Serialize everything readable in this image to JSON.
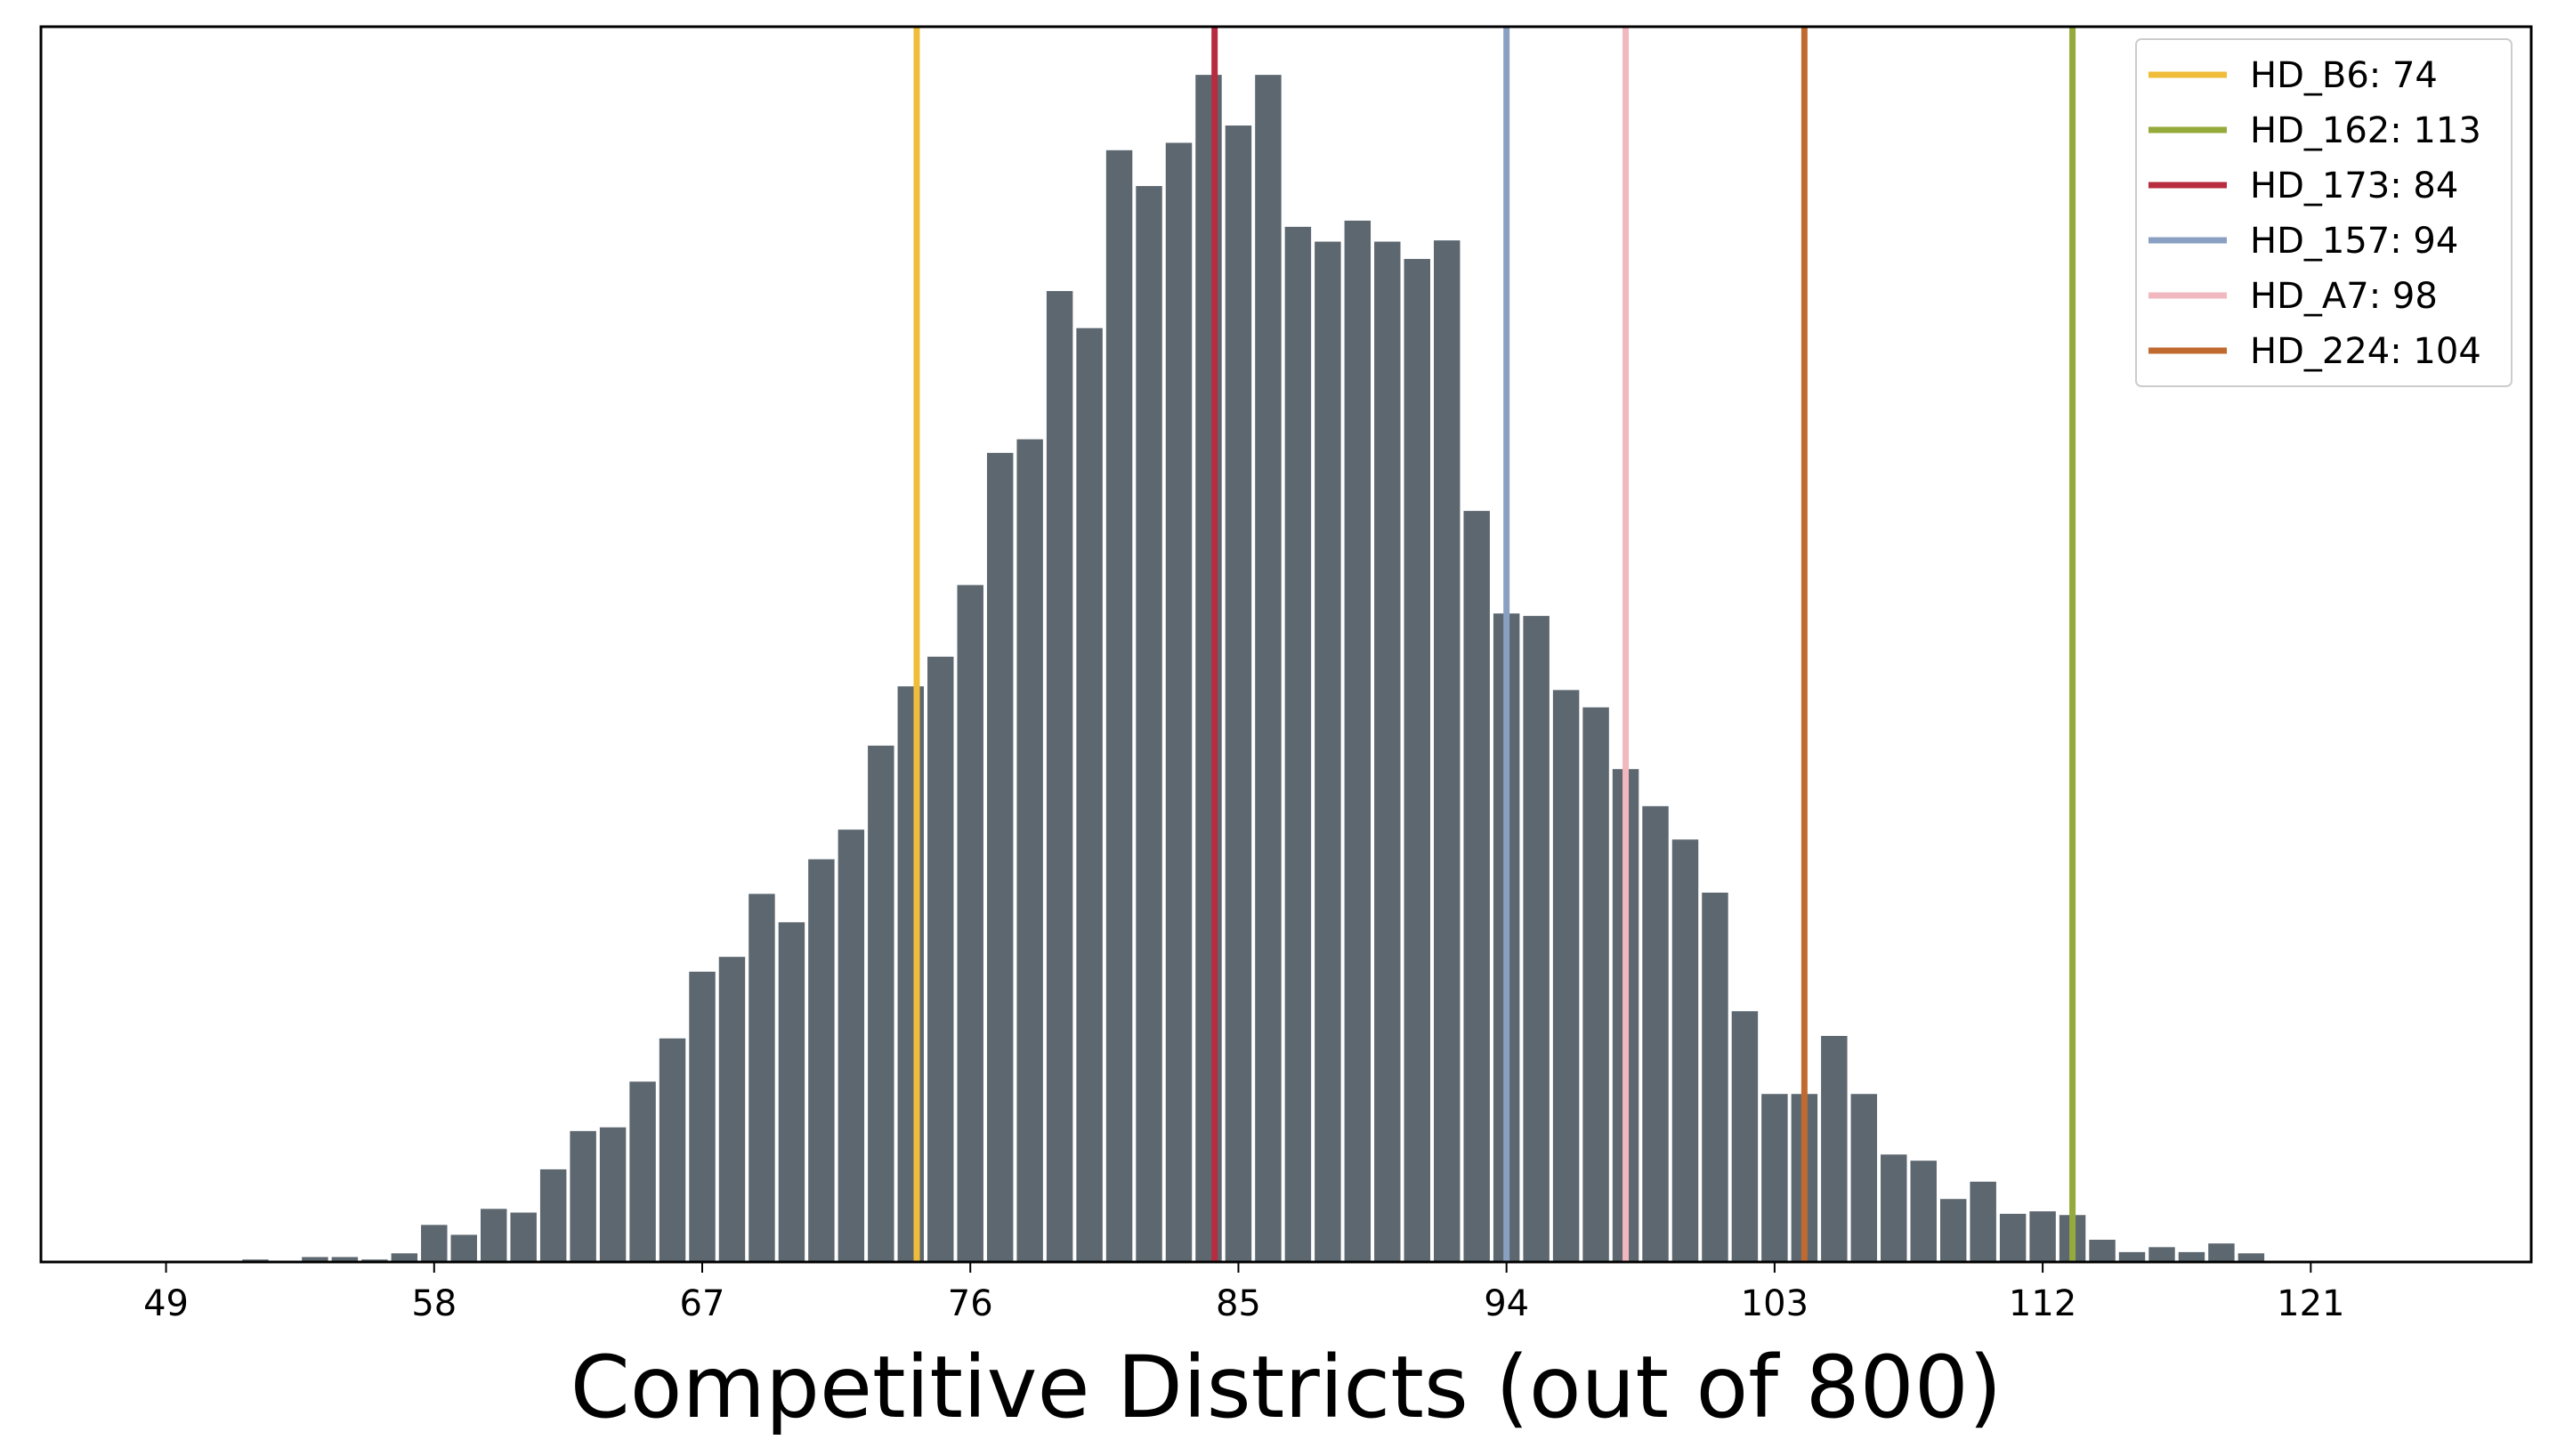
{
  "chart_data": {
    "type": "bar",
    "xlabel": "Competitive Districts (out of 800)",
    "ylabel": "",
    "title": "",
    "x_ticks": [
      49,
      58,
      67,
      76,
      85,
      94,
      103,
      112,
      121
    ],
    "xlim": [
      44.8,
      128.4
    ],
    "ylim": [
      0,
      1
    ],
    "grid": false,
    "legend_position": "top-right",
    "bar_color": "#5d6770",
    "histogram": {
      "x": [
        52,
        53,
        54,
        55,
        56,
        57,
        58,
        59,
        60,
        61,
        62,
        63,
        64,
        65,
        66,
        67,
        68,
        69,
        70,
        71,
        72,
        73,
        74,
        75,
        76,
        77,
        78,
        79,
        80,
        81,
        82,
        83,
        84,
        85,
        86,
        87,
        88,
        89,
        90,
        91,
        92,
        93,
        94,
        95,
        96,
        97,
        98,
        99,
        100,
        101,
        102,
        103,
        104,
        105,
        106,
        107,
        108,
        109,
        110,
        111,
        112,
        113,
        114,
        115,
        116,
        117,
        118,
        119
      ],
      "values": [
        0.002,
        0.0,
        0.004,
        0.004,
        0.002,
        0.007,
        0.03,
        0.022,
        0.043,
        0.04,
        0.075,
        0.106,
        0.109,
        0.146,
        0.181,
        0.235,
        0.247,
        0.298,
        0.275,
        0.326,
        0.35,
        0.418,
        0.466,
        0.49,
        0.548,
        0.655,
        0.666,
        0.786,
        0.756,
        0.9,
        0.871,
        0.906,
        0.961,
        0.92,
        0.961,
        0.838,
        0.826,
        0.843,
        0.826,
        0.812,
        0.827,
        0.608,
        0.525,
        0.523,
        0.463,
        0.449,
        0.399,
        0.369,
        0.342,
        0.299,
        0.203,
        0.136,
        0.136,
        0.183,
        0.136,
        0.087,
        0.082,
        0.051,
        0.065,
        0.039,
        0.041,
        0.038,
        0.018,
        0.008,
        0.012,
        0.008,
        0.015,
        0.007
      ]
    },
    "vlines": [
      {
        "name": "HD_B6: 74",
        "x": 74.2,
        "color": "#efbd3a"
      },
      {
        "name": "HD_162: 113",
        "x": 113.0,
        "color": "#94aa3a"
      },
      {
        "name": "HD_173: 84",
        "x": 84.2,
        "color": "#b72c3f"
      },
      {
        "name": "HD_157: 94",
        "x": 94.0,
        "color": "#8aa0c2"
      },
      {
        "name": "HD_A7: 98",
        "x": 98.0,
        "color": "#f2b8c0"
      },
      {
        "name": "HD_224: 104",
        "x": 104.0,
        "color": "#c06a30"
      }
    ]
  }
}
